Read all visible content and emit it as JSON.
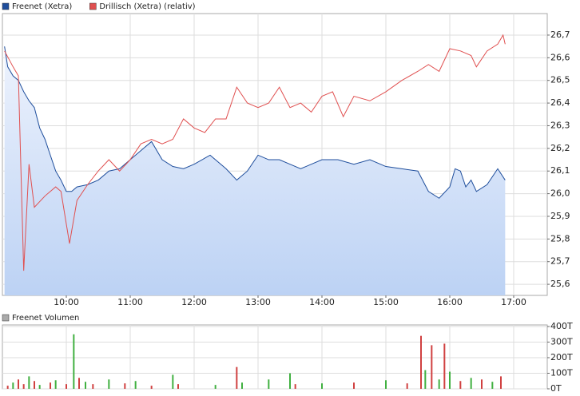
{
  "chart_data": [
    {
      "type": "line",
      "series": [
        {
          "name": "Freenet (Xetra)",
          "color": "#1f4e9c",
          "fill": true,
          "x": [
            542,
            545,
            550,
            555,
            560,
            565,
            570,
            575,
            580,
            585,
            590,
            595,
            600,
            605,
            610,
            620,
            630,
            640,
            650,
            660,
            670,
            680,
            690,
            700,
            710,
            720,
            735,
            750,
            760,
            770,
            780,
            790,
            800,
            810,
            820,
            830,
            840,
            855,
            870,
            885,
            900,
            915,
            930,
            940,
            950,
            960,
            965,
            970,
            975,
            980,
            985,
            995,
            1005,
            1012
          ],
          "values": [
            26.65,
            26.56,
            26.52,
            26.5,
            26.45,
            26.41,
            26.38,
            26.29,
            26.24,
            26.17,
            26.1,
            26.06,
            26.01,
            26.01,
            26.03,
            26.04,
            26.06,
            26.1,
            26.11,
            26.15,
            26.19,
            26.23,
            26.15,
            26.12,
            26.11,
            26.13,
            26.17,
            26.11,
            26.06,
            26.1,
            26.17,
            26.15,
            26.15,
            26.13,
            26.11,
            26.13,
            26.15,
            26.15,
            26.13,
            26.15,
            26.12,
            26.11,
            26.1,
            26.01,
            25.98,
            26.03,
            26.11,
            26.1,
            26.03,
            26.06,
            26.01,
            26.04,
            26.11,
            26.06
          ]
        },
        {
          "name": "Drillisch (Xetra) (relativ)",
          "color": "#e05050",
          "fill": false,
          "x": [
            542,
            550,
            555,
            560,
            565,
            570,
            580,
            590,
            595,
            603,
            610,
            620,
            630,
            640,
            650,
            660,
            670,
            680,
            690,
            700,
            710,
            720,
            730,
            740,
            750,
            760,
            770,
            780,
            790,
            800,
            810,
            820,
            830,
            840,
            850,
            860,
            870,
            885,
            900,
            915,
            930,
            940,
            950,
            960,
            970,
            980,
            985,
            995,
            1005,
            1010,
            1012
          ],
          "values": [
            26.63,
            26.56,
            26.52,
            25.66,
            26.13,
            25.94,
            25.99,
            26.03,
            26.01,
            25.78,
            25.97,
            26.04,
            26.1,
            26.15,
            26.1,
            26.15,
            26.22,
            26.24,
            26.22,
            26.24,
            26.33,
            26.29,
            26.27,
            26.33,
            26.33,
            26.47,
            26.4,
            26.38,
            26.4,
            26.47,
            26.38,
            26.4,
            26.36,
            26.43,
            26.45,
            26.34,
            26.43,
            26.41,
            26.45,
            26.5,
            26.54,
            26.57,
            26.54,
            26.64,
            26.63,
            26.61,
            26.56,
            26.63,
            26.66,
            26.7,
            26.66
          ]
        }
      ],
      "xlim": [
        540,
        1051.5
      ],
      "xticks": [
        {
          "value": 600,
          "label": "10:00"
        },
        {
          "value": 660,
          "label": "11:00"
        },
        {
          "value": 720,
          "label": "12:00"
        },
        {
          "value": 780,
          "label": "13:00"
        },
        {
          "value": 840,
          "label": "14:00"
        },
        {
          "value": 900,
          "label": "15:00"
        },
        {
          "value": 960,
          "label": "16:00"
        },
        {
          "value": 1020,
          "label": "17:00"
        }
      ],
      "ylim": [
        25.551,
        26.795
      ],
      "yticks": [
        {
          "value": 25.6,
          "label": "25,6"
        },
        {
          "value": 25.7,
          "label": "25,7"
        },
        {
          "value": 25.8,
          "label": "25,8"
        },
        {
          "value": 25.9,
          "label": "25,9"
        },
        {
          "value": 26.0,
          "label": "26,0"
        },
        {
          "value": 26.1,
          "label": "26,1"
        },
        {
          "value": 26.2,
          "label": "26,2"
        },
        {
          "value": 26.3,
          "label": "26,3"
        },
        {
          "value": 26.4,
          "label": "26,4"
        },
        {
          "value": 26.5,
          "label": "26,5"
        },
        {
          "value": 26.6,
          "label": "26,6"
        },
        {
          "value": 26.7,
          "label": "26,7"
        }
      ],
      "grid": true
    },
    {
      "type": "bar",
      "series": [
        {
          "name": "Freenet Volumen",
          "color": "#aaaaaa",
          "x": [
            545,
            550,
            555,
            560,
            565,
            570,
            575,
            585,
            590,
            600,
            607,
            612,
            618,
            625,
            640,
            655,
            665,
            680,
            700,
            705,
            740,
            760,
            765,
            790,
            810,
            815,
            840,
            870,
            900,
            920,
            933,
            937,
            943,
            950,
            955,
            960,
            970,
            980,
            990,
            1000,
            1008
          ],
          "values": [
            20,
            40,
            60,
            30,
            80,
            50,
            25,
            40,
            55,
            30,
            350,
            70,
            45,
            30,
            60,
            35,
            50,
            20,
            90,
            30,
            25,
            140,
            40,
            60,
            100,
            30,
            35,
            40,
            55,
            35,
            340,
            120,
            280,
            60,
            290,
            110,
            50,
            70,
            60,
            45,
            80
          ],
          "colors": [
            "#d04040",
            "#40b040",
            "#d04040",
            "#d04040",
            "#40b040",
            "#d04040",
            "#40b040",
            "#d04040",
            "#40b040",
            "#d04040",
            "#40b040",
            "#d04040",
            "#40b040",
            "#d04040",
            "#40b040",
            "#d04040",
            "#40b040",
            "#d04040",
            "#40b040",
            "#d04040",
            "#40b040",
            "#d04040",
            "#40b040",
            "#40b040",
            "#40b040",
            "#d04040",
            "#40b040",
            "#d04040",
            "#40b040",
            "#d04040",
            "#d04040",
            "#40b040",
            "#d04040",
            "#40b040",
            "#d04040",
            "#40b040",
            "#d04040",
            "#40b040",
            "#d04040",
            "#40b040",
            "#d04040"
          ]
        }
      ],
      "xlim": [
        540,
        1051.5
      ],
      "ylim": [
        0,
        410
      ],
      "yticks": [
        {
          "value": 0,
          "label": "0T"
        },
        {
          "value": 100,
          "label": "100T"
        },
        {
          "value": 200,
          "label": "200T"
        },
        {
          "value": 300,
          "label": "300T"
        },
        {
          "value": 400,
          "label": "400T"
        }
      ],
      "grid": true
    }
  ]
}
